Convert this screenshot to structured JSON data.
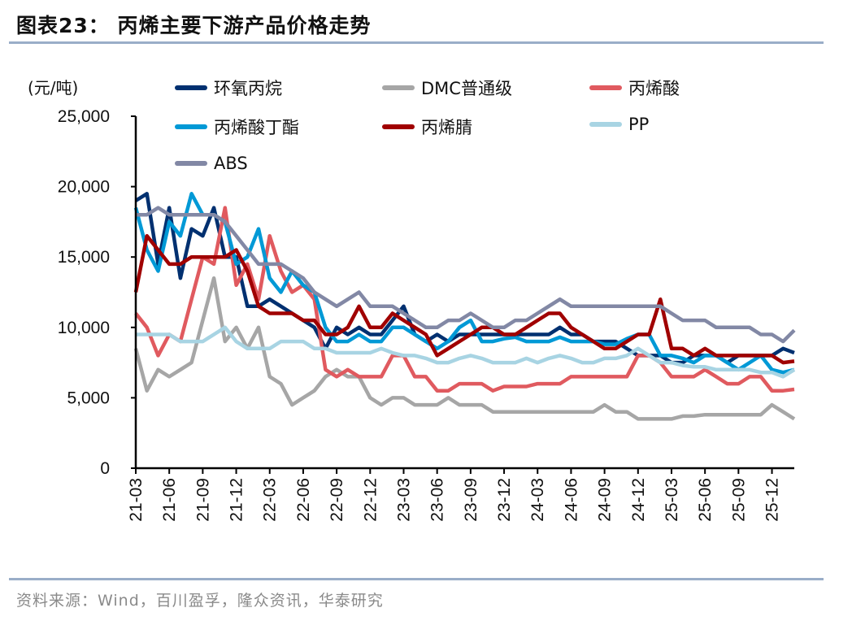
{
  "title": "图表23：  丙烯主要下游产品价格走势",
  "source": "资料来源：Wind，百川盈孚，隆众资讯，华泰研究",
  "chart_data": {
    "type": "line",
    "title": "丙烯主要下游产品价格走势",
    "ylabel": "(元/吨)",
    "ylim": [
      0,
      25000
    ],
    "yticks": [
      0,
      5000,
      10000,
      15000,
      20000,
      25000
    ],
    "ytick_labels": [
      "0",
      "5,000",
      "10,000",
      "15,000",
      "20,000",
      "25,000"
    ],
    "grid": false,
    "legend": "top",
    "categories": [
      "21-03",
      "21-04",
      "21-05",
      "21-06",
      "21-07",
      "21-08",
      "21-09",
      "21-10",
      "21-11",
      "21-12",
      "22-01",
      "22-02",
      "22-03",
      "22-04",
      "22-05",
      "22-06",
      "22-07",
      "22-08",
      "22-09",
      "22-10",
      "22-11",
      "22-12",
      "23-01",
      "23-02",
      "23-03",
      "23-04",
      "23-05",
      "23-06",
      "23-07",
      "23-08",
      "23-09",
      "23-10",
      "23-11",
      "23-12",
      "24-01",
      "24-02",
      "24-03",
      "24-04",
      "24-05",
      "24-06",
      "24-07",
      "24-08",
      "24-09",
      "24-10",
      "24-11",
      "24-12",
      "25-01",
      "25-02",
      "25-03",
      "25-04",
      "25-05",
      "25-06",
      "25-07",
      "25-08",
      "25-09",
      "25-10",
      "25-11",
      "25-12",
      "26-01",
      "26-02"
    ],
    "xtick_labels": [
      "21-03",
      "21-06",
      "21-09",
      "21-12",
      "22-03",
      "22-06",
      "22-09",
      "22-12",
      "23-03",
      "23-06",
      "23-09",
      "23-12",
      "24-03",
      "24-06",
      "24-09",
      "24-12",
      "25-03",
      "25-06",
      "25-09",
      "25-12"
    ],
    "series": [
      {
        "name": "环氧丙烷",
        "color": "#003070",
        "values": [
          19000,
          19500,
          14500,
          18500,
          13500,
          17000,
          16500,
          18500,
          15000,
          15000,
          11500,
          11500,
          12000,
          11500,
          11000,
          10500,
          10000,
          8500,
          10000,
          9500,
          10000,
          9500,
          9500,
          10500,
          11500,
          9500,
          9000,
          9500,
          9000,
          9500,
          9500,
          9500,
          9500,
          9500,
          9500,
          9500,
          9500,
          9500,
          10000,
          9500,
          9500,
          9000,
          9000,
          9000,
          8500,
          8000,
          8000,
          8000,
          7500,
          7500,
          8000,
          8000,
          8000,
          7500,
          8000,
          8000,
          8000,
          8000,
          8500,
          8200
        ]
      },
      {
        "name": "DMC普通级",
        "color": "#a6a6a6",
        "values": [
          8500,
          5500,
          7000,
          6500,
          7000,
          7500,
          10500,
          13500,
          9000,
          10000,
          8500,
          10000,
          6500,
          6000,
          4500,
          5000,
          5500,
          6500,
          7000,
          6500,
          6500,
          5000,
          4500,
          5000,
          5000,
          4500,
          4500,
          4500,
          5000,
          4500,
          4500,
          4500,
          4000,
          4000,
          4000,
          4000,
          4000,
          4000,
          4000,
          4000,
          4000,
          4000,
          4500,
          4000,
          4000,
          3500,
          3500,
          3500,
          3500,
          3700,
          3700,
          3800,
          3800,
          3800,
          3800,
          3800,
          3800,
          4500,
          4000,
          3500
        ]
      },
      {
        "name": "丙烯酸",
        "color": "#e05a5f",
        "values": [
          11000,
          10000,
          8000,
          9500,
          9000,
          12000,
          15000,
          14500,
          18500,
          13000,
          14500,
          12000,
          16500,
          14000,
          12500,
          13000,
          12000,
          7000,
          6500,
          7000,
          6500,
          6500,
          6500,
          8000,
          8000,
          6500,
          6500,
          5500,
          5500,
          6000,
          6000,
          6000,
          5500,
          5800,
          5800,
          5800,
          6000,
          6000,
          6000,
          6500,
          6500,
          6500,
          6500,
          6500,
          6500,
          8000,
          8000,
          7500,
          6500,
          6500,
          6500,
          7000,
          6500,
          6000,
          6000,
          6500,
          6500,
          5500,
          5500,
          5600
        ]
      },
      {
        "name": "丙烯酸丁酯",
        "color": "#0099d6",
        "values": [
          18500,
          15500,
          14000,
          17500,
          16500,
          19500,
          18000,
          18000,
          17500,
          14500,
          15000,
          17000,
          13500,
          12500,
          14000,
          13000,
          12500,
          10000,
          9000,
          9000,
          9500,
          9000,
          9000,
          10000,
          10000,
          9500,
          9000,
          8500,
          9000,
          10000,
          10500,
          9000,
          9000,
          9200,
          9300,
          9000,
          9000,
          9000,
          9300,
          9000,
          9000,
          9000,
          8800,
          8800,
          9200,
          9500,
          9500,
          8000,
          8000,
          7800,
          7500,
          8000,
          8000,
          7500,
          7000,
          7500,
          8000,
          7000,
          6800,
          7000
        ]
      },
      {
        "name": "丙烯腈",
        "color": "#a00000",
        "values": [
          12500,
          16500,
          15500,
          14500,
          14500,
          15000,
          15000,
          15000,
          15000,
          15500,
          14000,
          11500,
          11000,
          11000,
          11000,
          10500,
          10500,
          9500,
          9500,
          10000,
          11500,
          10000,
          10000,
          11000,
          10500,
          10000,
          9500,
          8000,
          8500,
          9000,
          9500,
          10000,
          10000,
          9500,
          9500,
          10000,
          10500,
          11000,
          11000,
          10000,
          9500,
          9000,
          8500,
          8500,
          9000,
          9500,
          9500,
          12000,
          8500,
          8500,
          8000,
          8500,
          8000,
          8000,
          8000,
          8000,
          8000,
          8000,
          7500,
          7600
        ]
      },
      {
        "name": "PP",
        "color": "#a8d4e3",
        "values": [
          9500,
          9500,
          9500,
          9500,
          9000,
          9000,
          9000,
          9500,
          10000,
          9000,
          8500,
          8500,
          8500,
          9000,
          9000,
          9000,
          8500,
          8500,
          8200,
          8200,
          8200,
          8200,
          8500,
          8200,
          8000,
          8000,
          7800,
          7500,
          7500,
          7800,
          8000,
          7800,
          7500,
          7500,
          7500,
          7800,
          7500,
          7800,
          8000,
          7800,
          7500,
          7500,
          7800,
          7800,
          8000,
          8500,
          8000,
          7500,
          7500,
          7300,
          7200,
          7200,
          7000,
          7000,
          7000,
          7000,
          6800,
          6800,
          6500,
          7000
        ]
      },
      {
        "name": "ABS",
        "color": "#8288a5",
        "values": [
          18000,
          18000,
          18500,
          18000,
          18000,
          18000,
          18000,
          18000,
          17500,
          16500,
          15500,
          14500,
          14500,
          14500,
          14000,
          13500,
          12500,
          12000,
          11500,
          12000,
          12500,
          11500,
          11500,
          11500,
          11000,
          10500,
          10000,
          10000,
          10500,
          10500,
          11000,
          10500,
          10000,
          10000,
          10500,
          10500,
          11000,
          11500,
          12000,
          11500,
          11500,
          11500,
          11500,
          11500,
          11500,
          11500,
          11500,
          11500,
          11000,
          10500,
          10500,
          10500,
          10000,
          10000,
          10000,
          10000,
          9500,
          9500,
          9000,
          9800
        ]
      }
    ]
  }
}
